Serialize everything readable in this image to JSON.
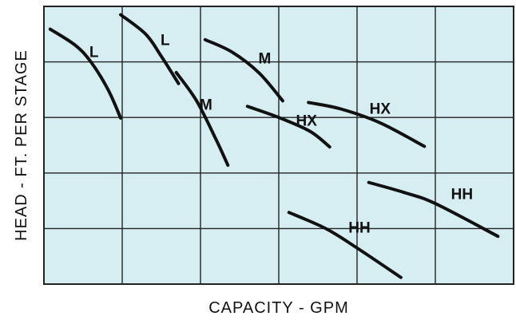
{
  "chart_data": {
    "type": "line",
    "title": "",
    "xlabel": "CAPACITY - GPM",
    "ylabel": "HEAD - FT. PER STAGE",
    "xlim": [
      0,
      6
    ],
    "ylim": [
      0,
      5
    ],
    "x_divisions": 6,
    "y_divisions": 5,
    "tick_labels": "none",
    "grid": true,
    "background_color": "#d6eef2",
    "grid_color": "#222222",
    "line_color": "#111111",
    "series": [
      {
        "name": "L",
        "label_at": [
          0.58,
          4.09
        ],
        "x": [
          0.08,
          0.4,
          0.6,
          0.82,
          0.98
        ],
        "y": [
          4.59,
          4.3,
          4.0,
          3.5,
          2.99
        ]
      },
      {
        "name": "L",
        "label_at": [
          1.49,
          4.3
        ],
        "x": [
          0.98,
          1.3,
          1.5,
          1.72
        ],
        "y": [
          4.85,
          4.5,
          4.1,
          3.61
        ]
      },
      {
        "name": "M",
        "label_at": [
          1.99,
          3.14
        ],
        "x": [
          1.69,
          1.95,
          2.2,
          2.35
        ],
        "y": [
          3.81,
          3.3,
          2.6,
          2.14
        ]
      },
      {
        "name": "M",
        "label_at": [
          2.74,
          3.97
        ],
        "x": [
          2.06,
          2.4,
          2.75,
          3.05
        ],
        "y": [
          4.4,
          4.18,
          3.8,
          3.3
        ]
      },
      {
        "name": "HX",
        "label_at": [
          3.22,
          2.85
        ],
        "x": [
          2.6,
          3.0,
          3.4,
          3.65
        ],
        "y": [
          3.2,
          3.0,
          2.75,
          2.47
        ]
      },
      {
        "name": "HX",
        "label_at": [
          4.16,
          3.07
        ],
        "x": [
          3.38,
          3.8,
          4.3,
          4.86
        ],
        "y": [
          3.27,
          3.15,
          2.9,
          2.48
        ]
      },
      {
        "name": "HH",
        "label_at": [
          5.2,
          1.53
        ],
        "x": [
          4.15,
          4.6,
          5.0,
          5.8
        ],
        "y": [
          1.83,
          1.65,
          1.45,
          0.86
        ]
      },
      {
        "name": "HH",
        "label_at": [
          3.89,
          0.93
        ],
        "x": [
          3.13,
          3.6,
          4.0,
          4.56
        ],
        "y": [
          1.29,
          1.0,
          0.65,
          0.12
        ]
      }
    ]
  }
}
